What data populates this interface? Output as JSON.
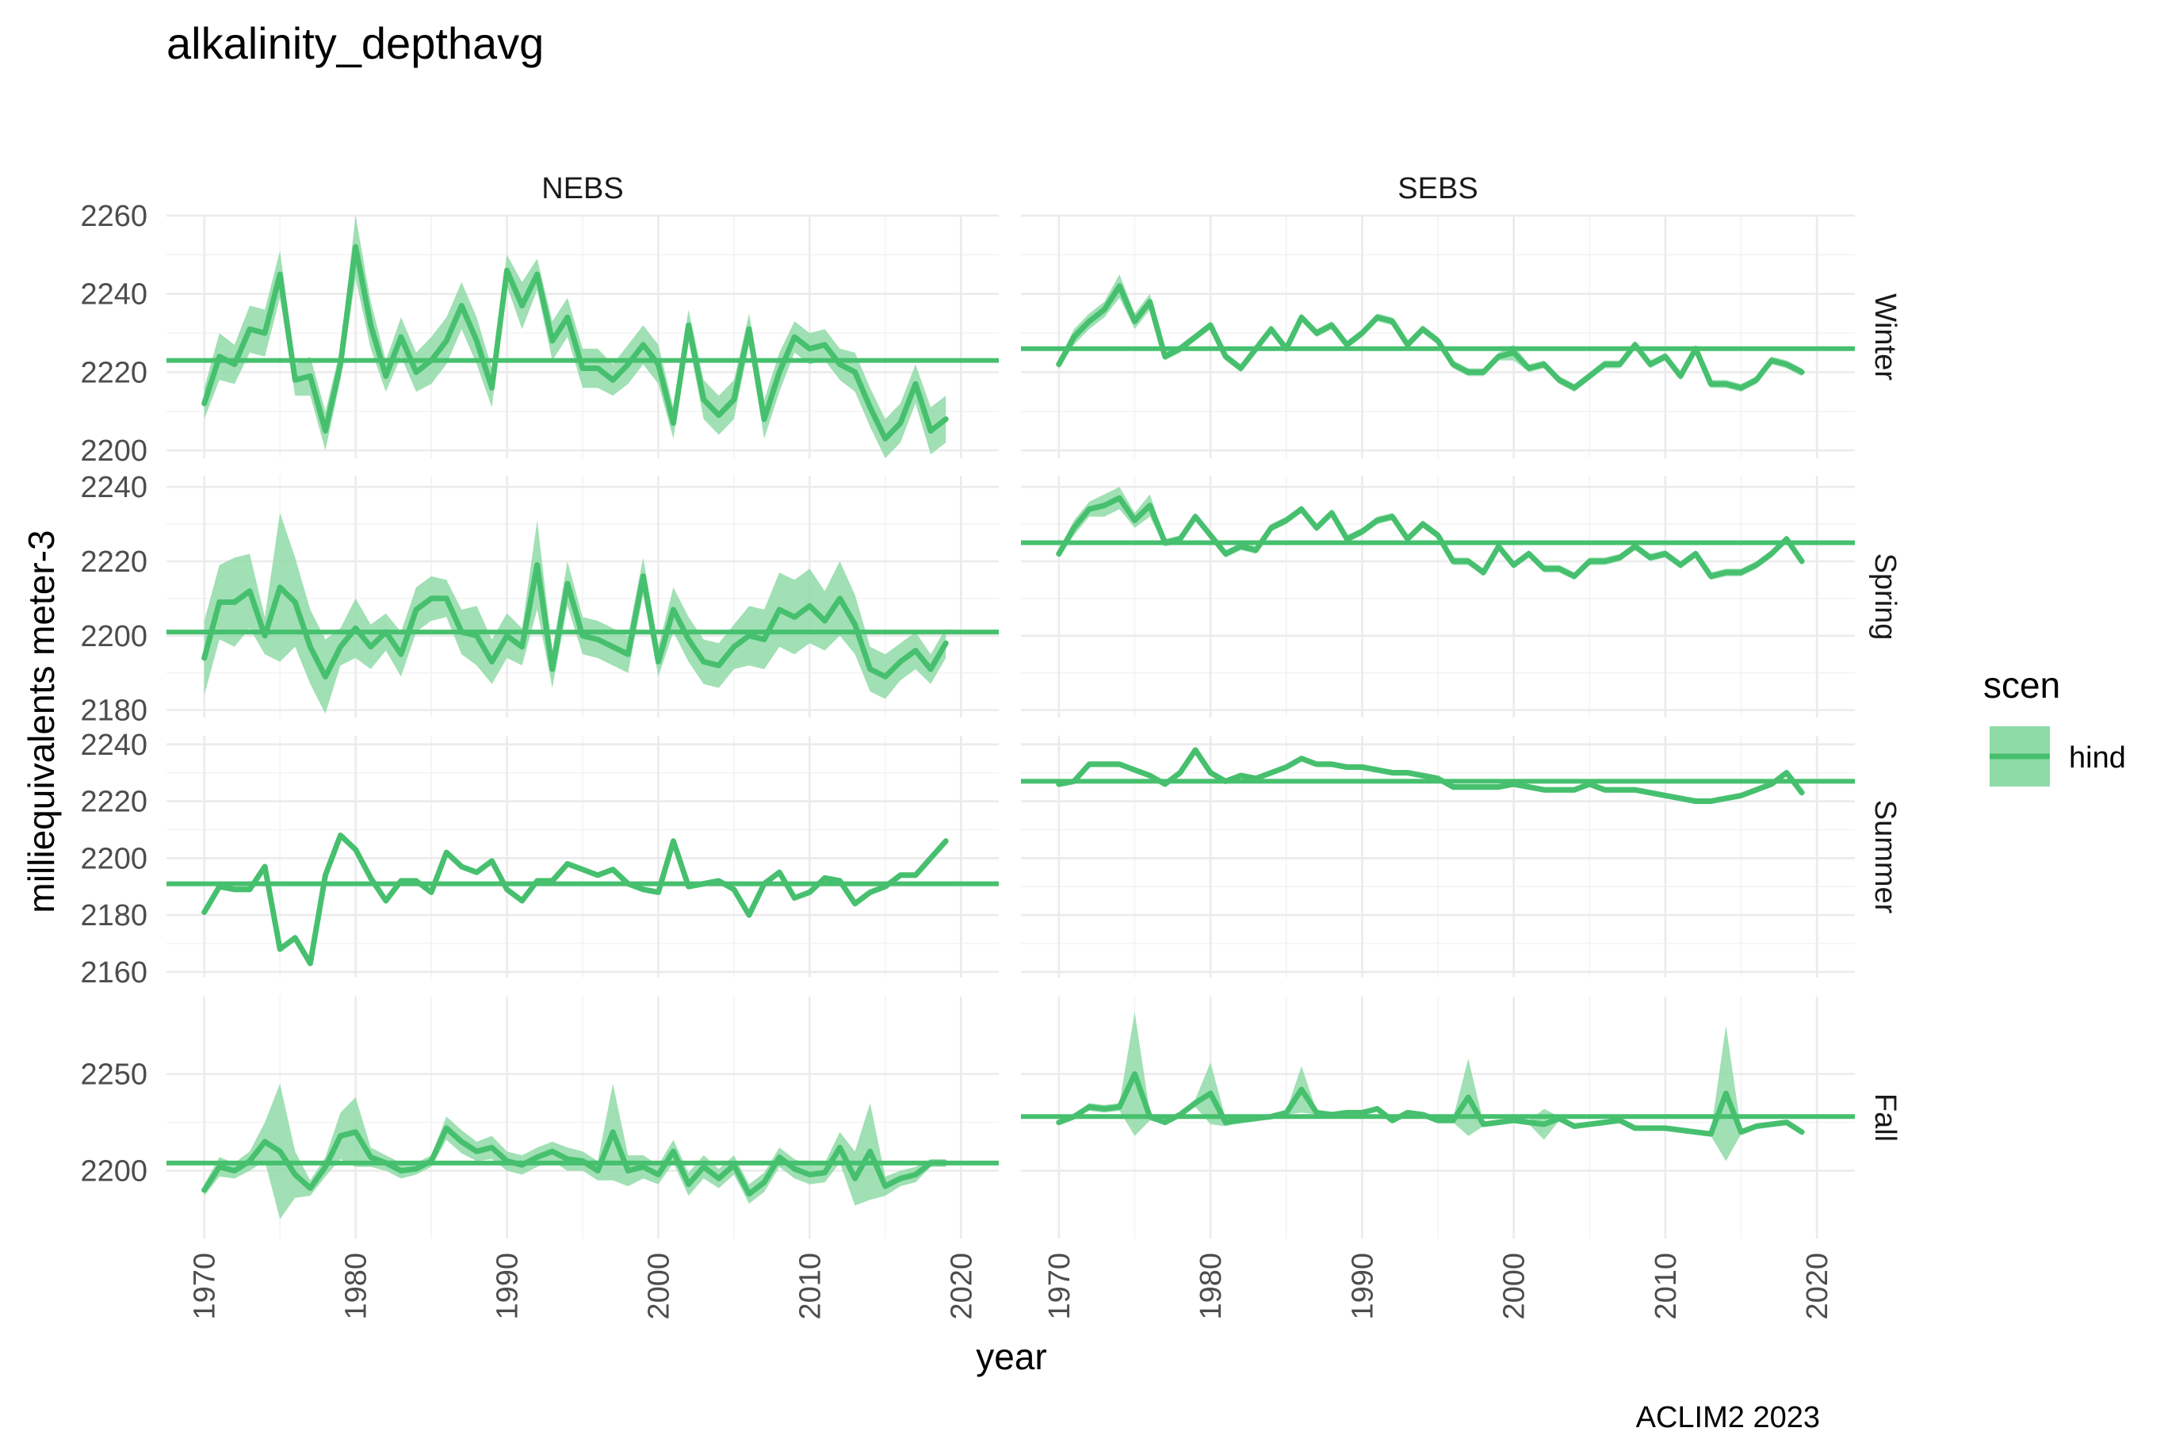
{
  "chart_data": {
    "type": "line",
    "title": "alkalinity_depthavg",
    "xlabel": "year",
    "ylabel": "milliequivalents meter-3",
    "caption": "ACLIM2 2023",
    "x_ticks": [
      "1970",
      "1980",
      "1990",
      "2000",
      "2010",
      "2020"
    ],
    "xlim": [
      1967.5,
      2022.5
    ],
    "columns": [
      "NEBS",
      "SEBS"
    ],
    "rows": [
      "Winter",
      "Spring",
      "Summer",
      "Fall"
    ],
    "legend": {
      "title": "scen",
      "entries": [
        "hind"
      ],
      "placement": "right"
    },
    "line_color": "#46c06e",
    "band_color": "#8fdba7",
    "grid": true,
    "start_year": 1970,
    "panels_by_row": [
      {
        "row": "Winter",
        "ylim": [
          2198,
          2260
        ],
        "y_ticks": [
          "2200",
          "2220",
          "2240",
          "2260"
        ],
        "y_tick_values": [
          2200,
          2220,
          2240,
          2260
        ]
      },
      {
        "row": "Spring",
        "ylim": [
          2178,
          2243
        ],
        "y_ticks": [
          "2180",
          "2200",
          "2220",
          "2240"
        ],
        "y_tick_values": [
          2180,
          2200,
          2220,
          2240
        ]
      },
      {
        "row": "Summer",
        "ylim": [
          2158,
          2243
        ],
        "y_ticks": [
          "2160",
          "2180",
          "2200",
          "2220",
          "2240"
        ],
        "y_tick_values": [
          2160,
          2180,
          2200,
          2220,
          2240
        ]
      },
      {
        "row": "Fall",
        "ylim": [
          2165,
          2290
        ],
        "y_ticks": [
          "2200",
          "2250"
        ],
        "y_tick_values": [
          2200,
          2250
        ]
      }
    ],
    "panels": [
      {
        "column": "NEBS",
        "row": "Winter",
        "mean": 2223,
        "series": [
          {
            "name": "hind",
            "values": [
              2212,
              2224,
              2222,
              2231,
              2230,
              2245,
              2218,
              2219,
              2205,
              2222,
              2252,
              2232,
              2219,
              2229,
              2220,
              2223,
              2228,
              2237,
              2228,
              2216,
              2246,
              2237,
              2245,
              2228,
              2234,
              2221,
              2221,
              2218,
              2222,
              2227,
              2222,
              2207,
              2232,
              2213,
              2209,
              2213,
              2231,
              2208,
              2220,
              2229,
              2226,
              2227,
              2222,
              2220,
              2211,
              2203,
              2207,
              2217,
              2205,
              2208
            ],
            "band": [
              4,
              6,
              5,
              6,
              6,
              6,
              4,
              5,
              5,
              4,
              8,
              6,
              4,
              5,
              5,
              6,
              6,
              6,
              6,
              5,
              4,
              6,
              4,
              5,
              5,
              5,
              5,
              4,
              5,
              5,
              5,
              4,
              4,
              5,
              5,
              5,
              4,
              5,
              5,
              4,
              4,
              4,
              4,
              5,
              5,
              5,
              5,
              5,
              6,
              6
            ]
          }
        ]
      },
      {
        "column": "SEBS",
        "row": "Winter",
        "mean": 2226,
        "series": [
          {
            "name": "hind",
            "values": [
              2222,
              2229,
              2233,
              2236,
              2242,
              2233,
              2238,
              2224,
              2226,
              2229,
              2232,
              2224,
              2221,
              2226,
              2231,
              2226,
              2234,
              2230,
              2232,
              2227,
              2230,
              2234,
              2233,
              2227,
              2231,
              2228,
              2222,
              2220,
              2220,
              2224,
              2225,
              2221,
              2222,
              2218,
              2216,
              2219,
              2222,
              2222,
              2227,
              2222,
              2224,
              2219,
              2226,
              2217,
              2217,
              2216,
              2218,
              2223,
              2222,
              2220
            ],
            "band": [
              1,
              2,
              2,
              2,
              3,
              2,
              2,
              1,
              1,
              1,
              1,
              1,
              1,
              1,
              1,
              1,
              1,
              1,
              1,
              1,
              1,
              1,
              1,
              1,
              1,
              1,
              1,
              1,
              1,
              1,
              2,
              1,
              1,
              1,
              1,
              1,
              1,
              1,
              1,
              1,
              1,
              1,
              1,
              1,
              1,
              1,
              1,
              1,
              1,
              1
            ]
          }
        ]
      },
      {
        "column": "NEBS",
        "row": "Spring",
        "mean": 2201,
        "series": [
          {
            "name": "hind",
            "values": [
              2194,
              2209,
              2209,
              2212,
              2200,
              2213,
              2209,
              2197,
              2189,
              2197,
              2202,
              2197,
              2201,
              2195,
              2207,
              2210,
              2210,
              2201,
              2200,
              2193,
              2200,
              2197,
              2219,
              2191,
              2214,
              2200,
              2199,
              2197,
              2195,
              2216,
              2193,
              2207,
              2199,
              2193,
              2192,
              2197,
              2200,
              2199,
              2207,
              2205,
              2208,
              2204,
              2210,
              2203,
              2191,
              2189,
              2193,
              2196,
              2191,
              2198
            ],
            "band": [
              10,
              10,
              12,
              10,
              5,
              20,
              12,
              10,
              10,
              5,
              8,
              6,
              5,
              6,
              6,
              6,
              5,
              6,
              8,
              6,
              6,
              5,
              12,
              5,
              6,
              5,
              5,
              5,
              5,
              5,
              4,
              6,
              6,
              6,
              6,
              6,
              8,
              8,
              10,
              10,
              10,
              8,
              10,
              8,
              6,
              6,
              5,
              5,
              4,
              4
            ]
          }
        ]
      },
      {
        "column": "SEBS",
        "row": "Spring",
        "mean": 2225,
        "series": [
          {
            "name": "hind",
            "values": [
              2222,
              2229,
              2234,
              2235,
              2237,
              2231,
              2235,
              2225,
              2226,
              2232,
              2227,
              2222,
              2224,
              2223,
              2229,
              2231,
              2234,
              2229,
              2233,
              2226,
              2228,
              2231,
              2232,
              2226,
              2230,
              2227,
              2220,
              2220,
              2217,
              2224,
              2219,
              2222,
              2218,
              2218,
              2216,
              2220,
              2220,
              2221,
              2224,
              2221,
              2222,
              2219,
              2222,
              2216,
              2217,
              2217,
              2219,
              2222,
              2226,
              2220
            ],
            "band": [
              1,
              2,
              2,
              3,
              3,
              2,
              3,
              1,
              1,
              1,
              1,
              1,
              1,
              1,
              1,
              1,
              1,
              1,
              1,
              1,
              1,
              1,
              1,
              1,
              1,
              1,
              1,
              1,
              1,
              1,
              1,
              1,
              1,
              1,
              1,
              1,
              1,
              1,
              1,
              1,
              1,
              1,
              1,
              1,
              1,
              1,
              1,
              1,
              1,
              1
            ]
          }
        ]
      },
      {
        "column": "NEBS",
        "row": "Summer",
        "mean": 2191,
        "series": [
          {
            "name": "hind",
            "values": [
              2181,
              2190,
              2189,
              2189,
              2197,
              2168,
              2172,
              2163,
              2194,
              2208,
              2203,
              2193,
              2185,
              2192,
              2192,
              2188,
              2202,
              2197,
              2195,
              2199,
              2189,
              2185,
              2192,
              2192,
              2198,
              2196,
              2194,
              2196,
              2191,
              2189,
              2188,
              2206,
              2190,
              2191,
              2192,
              2189,
              2180,
              2191,
              2195,
              2186,
              2188,
              2193,
              2192,
              2184,
              2188,
              2190,
              2194,
              2194,
              2200,
              2206
            ],
            "band": [
              1,
              1,
              1,
              1,
              1,
              1,
              1,
              1,
              1,
              1,
              1,
              1,
              1,
              1,
              1,
              1,
              1,
              1,
              1,
              1,
              1,
              1,
              1,
              1,
              1,
              1,
              1,
              1,
              1,
              1,
              1,
              1,
              1,
              1,
              1,
              1,
              1,
              1,
              1,
              1,
              1,
              1,
              1,
              1,
              1,
              1,
              1,
              1,
              1,
              1
            ]
          }
        ]
      },
      {
        "column": "SEBS",
        "row": "Summer",
        "mean": 2227,
        "series": [
          {
            "name": "hind",
            "values": [
              2226,
              2227,
              2233,
              2233,
              2233,
              2231,
              2229,
              2226,
              2230,
              2238,
              2230,
              2227,
              2229,
              2228,
              2230,
              2232,
              2235,
              2233,
              2233,
              2232,
              2232,
              2231,
              2230,
              2230,
              2229,
              2228,
              2225,
              2225,
              2225,
              2225,
              2226,
              2225,
              2224,
              2224,
              2224,
              2226,
              2224,
              2224,
              2224,
              2223,
              2222,
              2221,
              2220,
              2220,
              2221,
              2222,
              2224,
              2226,
              2230,
              2223
            ],
            "band": [
              1,
              1,
              1,
              1,
              1,
              1,
              1,
              1,
              1,
              1,
              1,
              1,
              1,
              1,
              1,
              1,
              1,
              1,
              1,
              1,
              1,
              1,
              1,
              1,
              1,
              1,
              1,
              1,
              1,
              1,
              1,
              1,
              1,
              1,
              1,
              1,
              1,
              1,
              1,
              1,
              1,
              1,
              1,
              1,
              1,
              1,
              1,
              1,
              1,
              1
            ]
          }
        ]
      },
      {
        "column": "NEBS",
        "row": "Fall",
        "mean": 2204,
        "series": [
          {
            "name": "hind",
            "values": [
              2190,
              2202,
              2200,
              2205,
              2215,
              2210,
              2198,
              2191,
              2202,
              2218,
              2220,
              2207,
              2204,
              2200,
              2201,
              2205,
              2222,
              2215,
              2210,
              2212,
              2205,
              2203,
              2207,
              2210,
              2206,
              2205,
              2200,
              2220,
              2200,
              2202,
              2198,
              2210,
              2193,
              2202,
              2196,
              2203,
              2188,
              2194,
              2207,
              2201,
              2198,
              2199,
              2212,
              2196,
              2210,
              2192,
              2196,
              2198,
              2204,
              2204
            ],
            "band": [
              3,
              5,
              4,
              5,
              10,
              35,
              12,
              4,
              5,
              12,
              18,
              5,
              4,
              4,
              3,
              3,
              6,
              6,
              5,
              6,
              5,
              5,
              5,
              5,
              6,
              5,
              5,
              25,
              8,
              6,
              5,
              6,
              6,
              6,
              5,
              5,
              5,
              5,
              5,
              5,
              5,
              5,
              8,
              14,
              25,
              5,
              4,
              4,
              2,
              2
            ]
          }
        ]
      },
      {
        "column": "SEBS",
        "row": "Fall",
        "mean": 2228,
        "series": [
          {
            "name": "hind",
            "values": [
              2225,
              2228,
              2233,
              2232,
              2233,
              2250,
              2228,
              2225,
              2229,
              2235,
              2240,
              2225,
              2226,
              2227,
              2228,
              2230,
              2242,
              2230,
              2229,
              2230,
              2230,
              2232,
              2226,
              2230,
              2229,
              2226,
              2226,
              2238,
              2224,
              2225,
              2226,
              2225,
              2224,
              2227,
              2223,
              2224,
              2225,
              2226,
              2222,
              2222,
              2222,
              2221,
              2220,
              2219,
              2240,
              2220,
              2223,
              2224,
              2225,
              2220
            ],
            "band": [
              1,
              1,
              2,
              2,
              2,
              32,
              2,
              1,
              1,
              2,
              16,
              2,
              1,
              1,
              1,
              1,
              12,
              1,
              1,
              1,
              1,
              1,
              1,
              1,
              1,
              1,
              1,
              20,
              1,
              1,
              1,
              1,
              8,
              1,
              1,
              1,
              1,
              1,
              1,
              1,
              1,
              1,
              1,
              1,
              35,
              1,
              1,
              1,
              1,
              1
            ]
          }
        ]
      }
    ]
  }
}
